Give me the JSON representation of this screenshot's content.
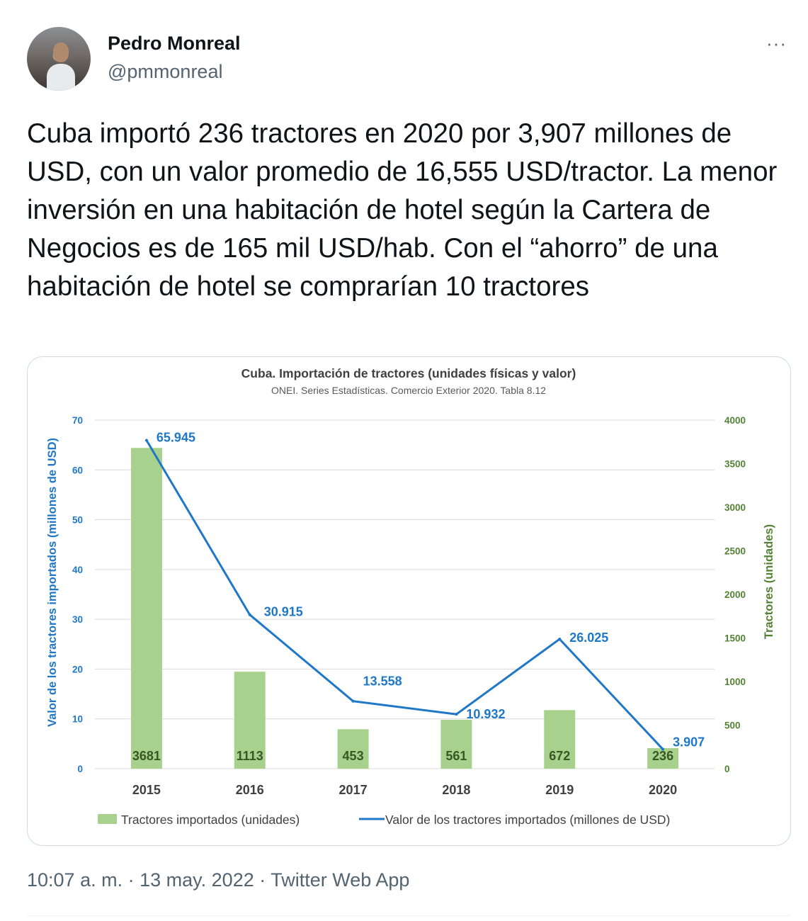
{
  "author": {
    "name": "Pedro Monreal",
    "handle": "@pmmonreal"
  },
  "more_label": "···",
  "tweet_text": "Cuba importó 236 tractores en 2020 por 3,907 millones de USD, con un valor promedio de 16,555 USD/tractor. La menor inversión en una habitación de hotel según la Cartera de Negocios es de 165 mil USD/hab. Con el “ahorro” de una habitación de hotel se comprarían 10 tractores",
  "meta": {
    "time": "10:07 a. m.",
    "date": "13 may. 2022",
    "source": "Twitter Web App",
    "separator": "·"
  },
  "colors": {
    "bar": "#a9d18e",
    "line": "#1f77c8",
    "right_axis": "#548235",
    "left_axis": "#1f77c8"
  },
  "chart_data": {
    "type": "bar",
    "title": "Cuba. Importación de tractores (unidades físicas y valor)",
    "subtitle": "ONEI. Series Estadísticas. Comercio Exterior 2020. Tabla 8.12",
    "categories": [
      "2015",
      "2016",
      "2017",
      "2018",
      "2019",
      "2020"
    ],
    "ylabel": "Valor de los tractores importados (millones de USD)",
    "y2label": "Tractores (unidades)",
    "ylim": [
      0,
      70
    ],
    "y2lim": [
      0,
      4000
    ],
    "yticks": [
      "0",
      "10",
      "20",
      "30",
      "40",
      "50",
      "60",
      "70"
    ],
    "y2ticks": [
      "0",
      "500",
      "1000",
      "1500",
      "2000",
      "2500",
      "3000",
      "3500",
      "4000"
    ],
    "series": [
      {
        "name": "Tractores importados (unidades)",
        "type": "bar",
        "axis": "right",
        "values": [
          3681,
          1113,
          453,
          561,
          672,
          236
        ],
        "labels": [
          "3681",
          "1113",
          "453",
          "561",
          "672",
          "236"
        ]
      },
      {
        "name": "Valor de los tractores importados (millones de USD)",
        "type": "line",
        "axis": "left",
        "values": [
          65.945,
          30.915,
          13.558,
          10.932,
          26.025,
          3.907
        ],
        "labels": [
          "65.945",
          "30.915",
          "13.558",
          "10.932",
          "26.025",
          "3.907"
        ]
      }
    ],
    "legend": "bottom",
    "grid": true
  }
}
